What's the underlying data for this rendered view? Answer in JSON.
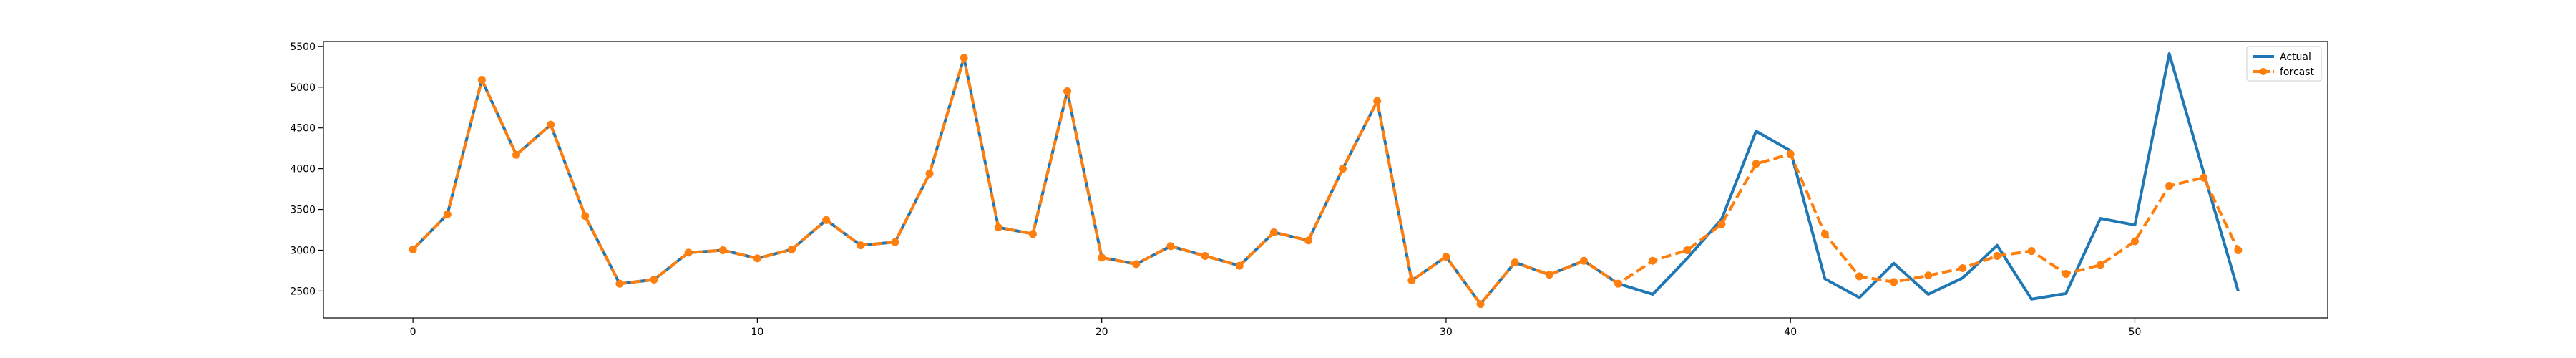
{
  "chart_data": {
    "type": "line",
    "title": "",
    "xlabel": "",
    "ylabel": "",
    "xlim": [
      -2.6,
      55.6
    ],
    "ylim": [
      2170,
      5560
    ],
    "x_ticks": [
      0,
      10,
      20,
      30,
      40,
      50
    ],
    "y_ticks": [
      2500,
      3000,
      3500,
      4000,
      4500,
      5000,
      5500
    ],
    "grid": false,
    "legend_position": "top-right",
    "series": [
      {
        "name": "Actual",
        "color": "#1f77b4",
        "style": "solid",
        "marker": "none",
        "x": [
          0,
          1,
          2,
          3,
          4,
          5,
          6,
          7,
          8,
          9,
          10,
          11,
          12,
          13,
          14,
          15,
          16,
          17,
          18,
          19,
          20,
          21,
          22,
          23,
          24,
          25,
          26,
          27,
          28,
          29,
          30,
          31,
          32,
          33,
          34,
          35,
          36,
          37,
          38,
          39,
          40,
          41,
          42,
          43,
          44,
          45,
          46,
          47,
          48,
          49,
          50,
          51,
          52,
          53
        ],
        "values": [
          3010,
          3440,
          5090,
          4170,
          4540,
          3420,
          2590,
          2640,
          2970,
          3000,
          2900,
          3010,
          3370,
          3060,
          3100,
          3940,
          5360,
          3280,
          3200,
          4950,
          2910,
          2830,
          3050,
          2930,
          2810,
          3220,
          3120,
          4000,
          4830,
          2630,
          2920,
          2340,
          2850,
          2700,
          2870,
          2590,
          2460,
          2900,
          3380,
          4460,
          4220,
          2650,
          2420,
          2840,
          2460,
          2660,
          3060,
          2400,
          2470,
          3390,
          3310,
          5410,
          3950,
          2500
        ]
      },
      {
        "name": "forcast",
        "color": "#ff7f0e",
        "style": "dashed",
        "marker": "circle",
        "x": [
          0,
          1,
          2,
          3,
          4,
          5,
          6,
          7,
          8,
          9,
          10,
          11,
          12,
          13,
          14,
          15,
          16,
          17,
          18,
          19,
          20,
          21,
          22,
          23,
          24,
          25,
          26,
          27,
          28,
          29,
          30,
          31,
          32,
          33,
          34,
          35,
          36,
          37,
          38,
          39,
          40,
          41,
          42,
          43,
          44,
          45,
          46,
          47,
          48,
          49,
          50,
          51,
          52,
          53
        ],
        "values": [
          3010,
          3440,
          5090,
          4170,
          4540,
          3420,
          2590,
          2640,
          2970,
          3000,
          2900,
          3010,
          3370,
          3060,
          3100,
          3940,
          5360,
          3280,
          3200,
          4950,
          2910,
          2830,
          3050,
          2930,
          2810,
          3220,
          3120,
          4000,
          4830,
          2630,
          2920,
          2340,
          2850,
          2700,
          2870,
          2590,
          2870,
          3000,
          3320,
          4060,
          4180,
          3200,
          2680,
          2610,
          2690,
          2780,
          2930,
          2990,
          2710,
          2820,
          3110,
          3790,
          3890,
          3000
        ]
      }
    ]
  }
}
